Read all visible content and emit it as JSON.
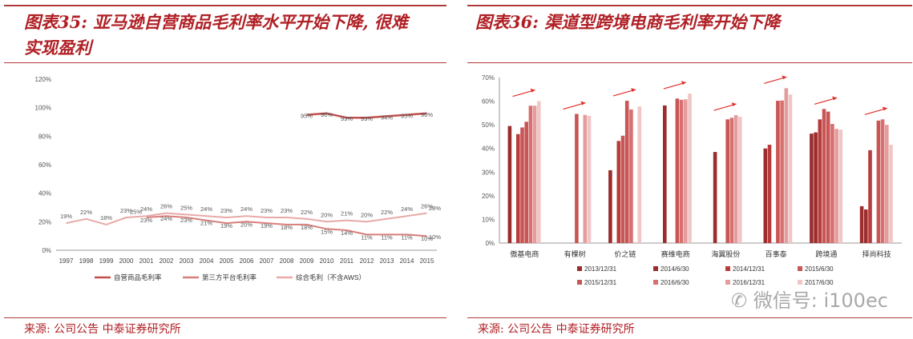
{
  "panel_left": {
    "title_line1": "图表35: 亚马逊自营商品毛利率水平开始下降, 很难",
    "title_line2": "实现盈利",
    "source": "来源: 公司公告 中泰证券研究所"
  },
  "panel_right": {
    "title": "图表36: 渠道型跨境电商毛利率开始下降",
    "source": "来源: 公司公告 中泰证券研究所"
  },
  "watermark": "微信号: i100ec",
  "colors": {
    "accent": "#b01f24",
    "line_self": "#c0504d",
    "line_third": "#d77f7b",
    "line_total": "#e8aaa8",
    "bar1": "#9b2d2d",
    "bar2": "#b83c3c",
    "bar3": "#c95555",
    "bar4": "#d87070",
    "bar5": "#e59c9c",
    "bar6": "#f0c6c6"
  },
  "chart_data": [
    {
      "type": "line",
      "title": "",
      "xlabel": "",
      "ylabel": "",
      "ylim": [
        0,
        120
      ],
      "yticks": [
        "0%",
        "20%",
        "40%",
        "60%",
        "80%",
        "100%",
        "120%"
      ],
      "categories": [
        "1997",
        "1998",
        "1999",
        "2000",
        "2001",
        "2002",
        "2003",
        "2004",
        "2005",
        "2006",
        "2007",
        "2008",
        "2009",
        "2010",
        "2011",
        "2012",
        "2013",
        "2014",
        "2015"
      ],
      "series": [
        {
          "name": "自营商品毛利率",
          "values": [
            null,
            null,
            null,
            null,
            null,
            null,
            null,
            null,
            null,
            null,
            null,
            null,
            95,
            96,
            93,
            93,
            94,
            95,
            96
          ],
          "labels": [
            "",
            "",
            "",
            "",
            "",
            "",
            "",
            "",
            "",
            "",
            "",
            "",
            "95%",
            "96%",
            "93%",
            "93%",
            "94%",
            "95%",
            "96%"
          ]
        },
        {
          "name": "第三方平台毛利率",
          "values": [
            null,
            null,
            null,
            null,
            23,
            24,
            23,
            21,
            19,
            20,
            19,
            18,
            18,
            15,
            14,
            11,
            11,
            11,
            10
          ],
          "labels": [
            "",
            "",
            "",
            "",
            "23%",
            "24%",
            "23%",
            "21%",
            "19%",
            "20%",
            "19%",
            "18%",
            "18%",
            "15%",
            "14%",
            "11%",
            "11%",
            "11%",
            "10%"
          ]
        },
        {
          "name": "综合毛利（不含AWS）",
          "values": [
            19,
            22,
            18,
            23,
            24,
            26,
            25,
            24,
            23,
            24,
            23,
            23,
            22,
            20,
            21,
            20,
            22,
            24,
            26
          ],
          "labels": [
            "19%",
            "22%",
            "18%",
            "23%",
            "24%",
            "26%",
            "25%",
            "24%",
            "23%",
            "24%",
            "23%",
            "23%",
            "22%",
            "20%",
            "21%",
            "20%",
            "22%",
            "24%",
            "26%"
          ]
        }
      ],
      "extra_labels": [
        "25%",
        "28%",
        "10%"
      ],
      "legend": "bottom"
    },
    {
      "type": "bar",
      "title": "",
      "xlabel": "",
      "ylabel": "",
      "ylim": [
        0,
        70
      ],
      "yticks": [
        "0%",
        "10%",
        "20%",
        "30%",
        "40%",
        "50%",
        "60%",
        "70%"
      ],
      "categories": [
        "傲基电商",
        "有棵树",
        "价之链",
        "赛维电商",
        "海翼股份",
        "百事泰",
        "跨境通",
        "择尚科技"
      ],
      "series": [
        {
          "name": "2013/12/31",
          "values": [
            49.5,
            null,
            30.8,
            null,
            null,
            null,
            46.3,
            15.6
          ]
        },
        {
          "name": "2014/6/30",
          "values": [
            null,
            null,
            null,
            58.2,
            38.5,
            40.0,
            46.8,
            14.2
          ]
        },
        {
          "name": "2014/12/31",
          "values": [
            46.1,
            null,
            43.2,
            null,
            null,
            41.6,
            52.3,
            39.3
          ]
        },
        {
          "name": "2015/6/30",
          "values": [
            48.9,
            null,
            45.4,
            null,
            null,
            null,
            56.7,
            null
          ]
        },
        {
          "name": "2015/12/31",
          "values": [
            51.3,
            54.6,
            60.2,
            61.1,
            52.3,
            60.2,
            55.6,
            51.8
          ]
        },
        {
          "name": "2016/6/30",
          "values": [
            58.1,
            null,
            56.5,
            60.6,
            53.0,
            60.3,
            50.4,
            52.3
          ]
        },
        {
          "name": "2016/12/31",
          "values": [
            58.1,
            54.2,
            null,
            60.8,
            54.1,
            65.5,
            48.3,
            50.0
          ]
        },
        {
          "name": "2017/6/30",
          "values": [
            60.0,
            53.8,
            57.8,
            63.2,
            53.4,
            62.8,
            48.0,
            41.6
          ]
        }
      ],
      "legend_labels": [
        "2013/12/31",
        "2014/6/30",
        "2014/12/31",
        "2015/6/30",
        "2015/12/31",
        "2016/6/30",
        "2016/12/31",
        "2017/6/30"
      ],
      "legend": "bottom"
    }
  ]
}
